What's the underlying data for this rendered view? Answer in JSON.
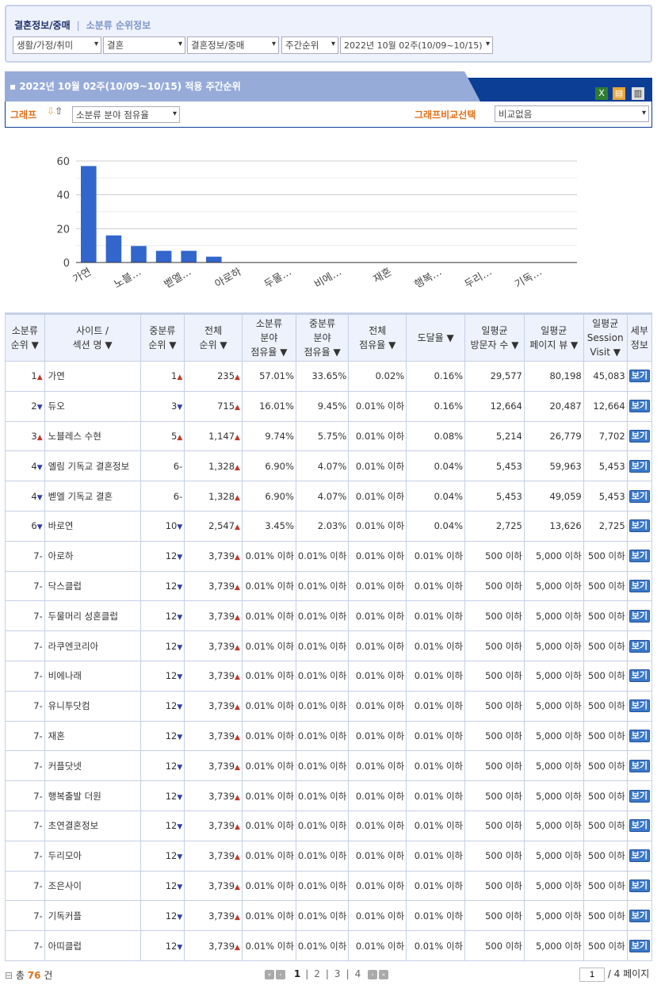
{
  "breadcrumb": {
    "current": "결혼정보/중매",
    "separator": "|",
    "sub": "소분류 순위정보"
  },
  "filters": [
    "생활/가정/취미",
    "결혼",
    "결혼정보/중매",
    "주간순위",
    "2022년 10월 02주(10/09~10/15)"
  ],
  "section_title": "2022년 10월 02주(10/09~10/15) 적용 주간순위",
  "toolbar_icons": [
    "excel-icon",
    "export-icon",
    "print-icon"
  ],
  "graph": {
    "label": "그래프",
    "select": "소분류 분야 점유율",
    "compare_label": "그래프비교선택",
    "compare_select": "비교없음"
  },
  "chart_data": {
    "type": "bar",
    "color": "#3366cc",
    "ylim": [
      0,
      60
    ],
    "yticks": [
      0,
      20,
      40,
      60
    ],
    "categories": [
      "가연",
      "듀오",
      "노블레스 수현",
      "엘림 기독교 결혼정보",
      "벧엘 기독교 결혼",
      "바로연",
      "아로하",
      "닥스클럽",
      "두물머리 성혼클럽",
      "라쿠엔코리아",
      "비에나래",
      "유니투닷컴",
      "재혼",
      "커플닷넷",
      "행복출발 더원",
      "초연결혼정보",
      "두리모아",
      "조은사이",
      "기독커플",
      "아띠클럽"
    ],
    "tick_labels": [
      "가연",
      "노블…",
      "벧엘…",
      "아로하",
      "두물…",
      "비에…",
      "재혼",
      "행복…",
      "두리…",
      "기독…"
    ],
    "values": [
      57.01,
      16.01,
      9.74,
      6.9,
      6.9,
      3.45,
      0.01,
      0.01,
      0.01,
      0.01,
      0.01,
      0.01,
      0.01,
      0.01,
      0.01,
      0.01,
      0.01,
      0.01,
      0.01,
      0.01
    ]
  },
  "table": {
    "headers": [
      "소분류\n순위 ▼",
      "사이트 /\n섹션 명 ▼",
      "중분류\n순위 ▼",
      "전체\n순위 ▼",
      "소분류\n분야\n점유율 ▼",
      "중분류\n분야\n점유율 ▼",
      "전체\n점유율 ▼",
      "도달율 ▼",
      "일평균\n방문자 수 ▼",
      "일평균\n페이지 뷰 ▼",
      "일평균\nSession\nVisit ▼",
      "세부\n정보"
    ],
    "view_label": "보기",
    "rows": [
      [
        "1",
        "up",
        "가연",
        "1",
        "up",
        "235",
        "up",
        "57.01%",
        "33.65%",
        "0.02%",
        "0.16%",
        "29,577",
        "80,198",
        "45,083"
      ],
      [
        "2",
        "down",
        "듀오",
        "3",
        "down",
        "715",
        "up",
        "16.01%",
        "9.45%",
        "0.01% 이하",
        "0.16%",
        "12,664",
        "20,487",
        "12,664"
      ],
      [
        "3",
        "up",
        "노블레스 수현",
        "5",
        "up",
        "1,147",
        "up",
        "9.74%",
        "5.75%",
        "0.01% 이하",
        "0.08%",
        "5,214",
        "26,779",
        "7,702"
      ],
      [
        "4",
        "down",
        "엘림 기독교 결혼정보",
        "6",
        "same",
        "1,328",
        "up",
        "6.90%",
        "4.07%",
        "0.01% 이하",
        "0.04%",
        "5,453",
        "59,963",
        "5,453"
      ],
      [
        "4",
        "down",
        "벧엘 기독교 결혼",
        "6",
        "same",
        "1,328",
        "up",
        "6.90%",
        "4.07%",
        "0.01% 이하",
        "0.04%",
        "5,453",
        "49,059",
        "5,453"
      ],
      [
        "6",
        "down",
        "바로연",
        "10",
        "down",
        "2,547",
        "up",
        "3.45%",
        "2.03%",
        "0.01% 이하",
        "0.04%",
        "2,725",
        "13,626",
        "2,725"
      ],
      [
        "7",
        "same",
        "아로하",
        "12",
        "down",
        "3,739",
        "up",
        "0.01% 이하",
        "0.01% 이하",
        "0.01% 이하",
        "0.01% 이하",
        "500 이하",
        "5,000 이하",
        "500 이하"
      ],
      [
        "7",
        "same",
        "닥스클럽",
        "12",
        "down",
        "3,739",
        "up",
        "0.01% 이하",
        "0.01% 이하",
        "0.01% 이하",
        "0.01% 이하",
        "500 이하",
        "5,000 이하",
        "500 이하"
      ],
      [
        "7",
        "same",
        "두물머리 성혼클럽",
        "12",
        "down",
        "3,739",
        "up",
        "0.01% 이하",
        "0.01% 이하",
        "0.01% 이하",
        "0.01% 이하",
        "500 이하",
        "5,000 이하",
        "500 이하"
      ],
      [
        "7",
        "same",
        "라쿠엔코리아",
        "12",
        "down",
        "3,739",
        "up",
        "0.01% 이하",
        "0.01% 이하",
        "0.01% 이하",
        "0.01% 이하",
        "500 이하",
        "5,000 이하",
        "500 이하"
      ],
      [
        "7",
        "same",
        "비에나래",
        "12",
        "down",
        "3,739",
        "up",
        "0.01% 이하",
        "0.01% 이하",
        "0.01% 이하",
        "0.01% 이하",
        "500 이하",
        "5,000 이하",
        "500 이하"
      ],
      [
        "7",
        "same",
        "유니투닷컴",
        "12",
        "down",
        "3,739",
        "up",
        "0.01% 이하",
        "0.01% 이하",
        "0.01% 이하",
        "0.01% 이하",
        "500 이하",
        "5,000 이하",
        "500 이하"
      ],
      [
        "7",
        "same",
        "재혼",
        "12",
        "down",
        "3,739",
        "up",
        "0.01% 이하",
        "0.01% 이하",
        "0.01% 이하",
        "0.01% 이하",
        "500 이하",
        "5,000 이하",
        "500 이하"
      ],
      [
        "7",
        "same",
        "커플닷넷",
        "12",
        "down",
        "3,739",
        "up",
        "0.01% 이하",
        "0.01% 이하",
        "0.01% 이하",
        "0.01% 이하",
        "500 이하",
        "5,000 이하",
        "500 이하"
      ],
      [
        "7",
        "same",
        "행복출발 더원",
        "12",
        "down",
        "3,739",
        "up",
        "0.01% 이하",
        "0.01% 이하",
        "0.01% 이하",
        "0.01% 이하",
        "500 이하",
        "5,000 이하",
        "500 이하"
      ],
      [
        "7",
        "same",
        "초연결혼정보",
        "12",
        "down",
        "3,739",
        "up",
        "0.01% 이하",
        "0.01% 이하",
        "0.01% 이하",
        "0.01% 이하",
        "500 이하",
        "5,000 이하",
        "500 이하"
      ],
      [
        "7",
        "same",
        "두리모아",
        "12",
        "down",
        "3,739",
        "up",
        "0.01% 이하",
        "0.01% 이하",
        "0.01% 이하",
        "0.01% 이하",
        "500 이하",
        "5,000 이하",
        "500 이하"
      ],
      [
        "7",
        "same",
        "조은사이",
        "12",
        "down",
        "3,739",
        "up",
        "0.01% 이하",
        "0.01% 이하",
        "0.01% 이하",
        "0.01% 이하",
        "500 이하",
        "5,000 이하",
        "500 이하"
      ],
      [
        "7",
        "same",
        "기독커플",
        "12",
        "down",
        "3,739",
        "up",
        "0.01% 이하",
        "0.01% 이하",
        "0.01% 이하",
        "0.01% 이하",
        "500 이하",
        "5,000 이하",
        "500 이하"
      ],
      [
        "7",
        "same",
        "아띠클럽",
        "12",
        "down",
        "3,739",
        "up",
        "0.01% 이하",
        "0.01% 이하",
        "0.01% 이하",
        "0.01% 이하",
        "500 이하",
        "5,000 이하",
        "500 이하"
      ]
    ]
  },
  "footer": {
    "total_prefix": "총",
    "total": "76",
    "total_suffix": "건",
    "pages": [
      "1",
      "2",
      "3",
      "4"
    ],
    "page_input": "1",
    "page_total": "/ 4 페이지"
  }
}
